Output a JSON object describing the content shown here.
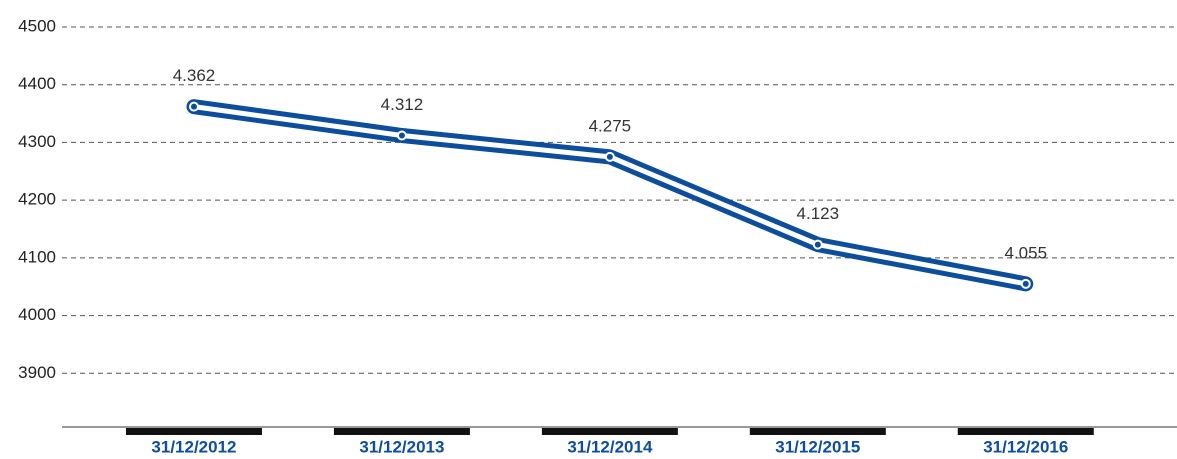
{
  "chart_data": {
    "type": "line",
    "categories": [
      "31/12/2012",
      "31/12/2013",
      "31/12/2014",
      "31/12/2015",
      "31/12/2016"
    ],
    "values": [
      4362,
      4312,
      4275,
      4123,
      4055
    ],
    "value_labels": [
      "4.362",
      "4.312",
      "4.275",
      "4.123",
      "4.055"
    ],
    "color": "#0d4e9c",
    "ylim": [
      3800,
      4500
    ],
    "yticks": [
      3900,
      4000,
      4100,
      4200,
      4300,
      4400,
      4500
    ],
    "grid": true
  }
}
